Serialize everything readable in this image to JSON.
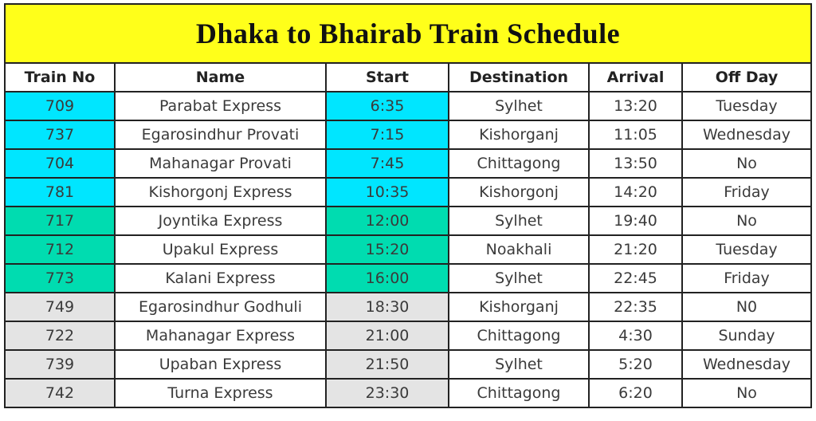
{
  "title": "Dhaka to Bhairab Train Schedule",
  "table": {
    "header": [
      "Train No",
      "Name",
      "Start",
      "Destination",
      "Arrival",
      "Off Day"
    ],
    "rows": [
      [
        "709",
        "Parabat Express",
        "6:35",
        "Sylhet",
        "13:20",
        "Tuesday"
      ],
      [
        "737",
        "Egarosindhur Provati",
        "7:15",
        "Kishorganj",
        "11:05",
        "Wednesday"
      ],
      [
        "704",
        "Mahanagar Provati",
        "7:45",
        "Chittagong",
        "13:50",
        "No"
      ],
      [
        "781",
        "Kishorgonj Express",
        "10:35",
        "Kishorgonj",
        "14:20",
        "Friday"
      ],
      [
        "717",
        "Joyntika Express",
        "12:00",
        "Sylhet",
        "19:40",
        "No"
      ],
      [
        "712",
        "Upakul Express",
        "15:20",
        "Noakhali",
        "21:20",
        "Tuesday"
      ],
      [
        "773",
        "Kalani Express",
        "16:00",
        "Sylhet",
        "22:45",
        "Friday"
      ],
      [
        "749",
        "Egarosindhur Godhuli",
        "18:30",
        "Kishorganj",
        "22:35",
        "N0"
      ],
      [
        "722",
        "Mahanagar Express",
        "21:00",
        "Chittagong",
        "4:30",
        "Sunday"
      ],
      [
        "739",
        "Upaban Express",
        "21:50",
        "Sylhet",
        "5:20",
        "Wednesday"
      ],
      [
        "742",
        "Turna Express",
        "23:30",
        "Chittagong",
        "6:20",
        "No"
      ]
    ]
  }
}
